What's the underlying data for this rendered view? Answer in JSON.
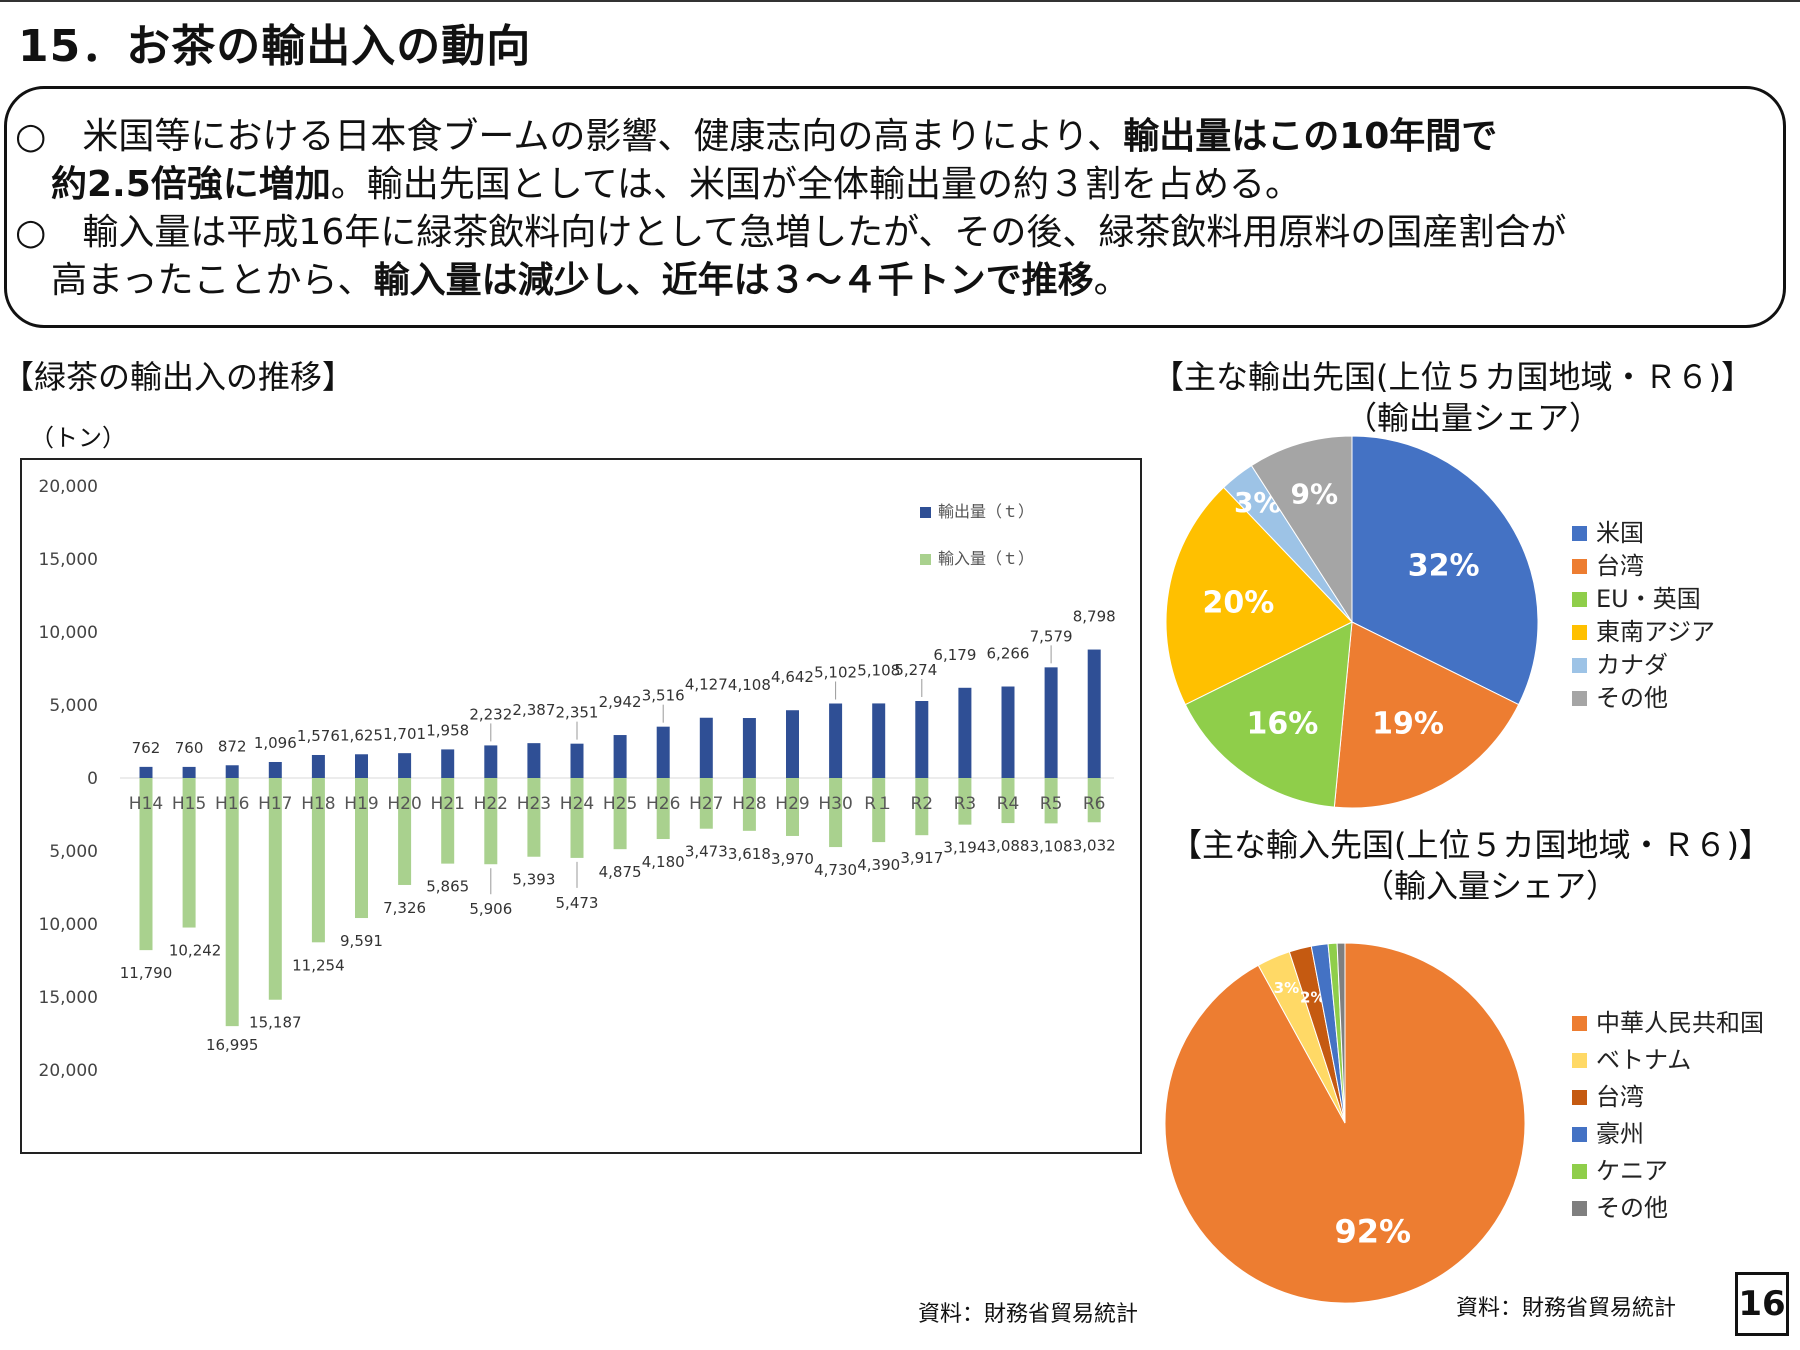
{
  "title": "15．お茶の輸出入の動向",
  "summary": {
    "bullet_mark": "○",
    "line1_plain": "　米国等における日本食ブームの影響、健康志向の高まりにより、",
    "line1_bold": "輸出量はこの10年間で",
    "line2_bold": "約2.5倍強に増加",
    "line2_plain": "。輸出先国としては、米国が全体輸出量の約３割を占める。",
    "line3_plain": "　輸入量は平成16年に緑茶飲料向けとして急増したが、その後、緑茶飲料用原料の国産割合が",
    "line4_plain": "高まったことから、",
    "line4_bold": "輸入量は減少し、近年は３～４千トンで推移",
    "line4_end": "。"
  },
  "left_section": {
    "label": "【緑茶の輸出入の推移】",
    "unit": "（トン）",
    "source": "資料：財務省貿易統計"
  },
  "export_section": {
    "label1": "【主な輸出先国(上位５カ国地域・Ｒ６)】",
    "label2": "（輸出量シェア）"
  },
  "import_section": {
    "label1": "【主な輸入先国(上位５カ国地域・Ｒ６)】",
    "label2": "（輸入量シェア）",
    "source": "資料：財務省貿易統計"
  },
  "page_number": "16",
  "colors": {
    "export_bar": "#2f4f95",
    "import_bar": "#a9d18e"
  },
  "chart_data": [
    {
      "type": "bar",
      "categories": [
        "H14",
        "H15",
        "H16",
        "H17",
        "H18",
        "H19",
        "H20",
        "H21",
        "H22",
        "H23",
        "H24",
        "H25",
        "H26",
        "H27",
        "H28",
        "H29",
        "H30",
        "R１",
        "R2",
        "R3",
        "R4",
        "R5",
        "R6"
      ],
      "series": [
        {
          "name": "輸出量（ｔ）",
          "values": [
            762,
            760,
            872,
            1096,
            1576,
            1625,
            1701,
            1958,
            2232,
            2387,
            2351,
            2942,
            3516,
            4127,
            4108,
            4642,
            5102,
            5108,
            5274,
            6179,
            6266,
            7579,
            8798
          ],
          "labels": [
            "762",
            "760",
            "872",
            "1,096",
            "1,576",
            "1,625",
            "1,701",
            "1,958",
            "2,232",
            "2,387",
            "2,351",
            "2,942",
            "3,516",
            "4,127",
            "4,108",
            "4,642",
            "5,102",
            "5,108",
            "5,274",
            "6,179",
            "6,266",
            "7,579",
            "8,798"
          ]
        },
        {
          "name": "輸入量（ｔ）",
          "values": [
            -11790,
            -10242,
            -16995,
            -15187,
            -11254,
            -9591,
            -7326,
            -5865,
            -5906,
            -5393,
            -5473,
            -4875,
            -4180,
            -3473,
            -3618,
            -3970,
            -4730,
            -4390,
            -3917,
            -3194,
            -3088,
            -3108,
            -3032
          ],
          "labels": [
            "11,790",
            "10,242",
            "16,995",
            "15,187",
            "11,254",
            "9,591",
            "7,326",
            "5,865",
            "5,906",
            "5,393",
            "5,473",
            "4,875",
            "4,180",
            "3,473",
            "3,618",
            "3,970",
            "4,730",
            "4,390",
            "3,917",
            "3,194",
            "3,088",
            "3,108",
            "3,032"
          ]
        }
      ],
      "yticks": [
        "20,000",
        "15,000",
        "10,000",
        "5,000",
        "0",
        "5,000",
        "10,000",
        "15,000",
        "20,000"
      ],
      "ylim": [
        -20000,
        20000
      ],
      "grid": false,
      "legend": "top-right"
    },
    {
      "type": "pie",
      "title": "【主な輸出先国(上位５カ国地域・Ｒ６)】",
      "categories": [
        "米国",
        "台湾",
        "EU・英国",
        "東南アジア",
        "カナダ",
        "その他"
      ],
      "values": [
        32,
        19,
        16,
        20,
        3,
        9
      ],
      "labels": [
        "32%",
        "19%",
        "16%",
        "20%",
        "3%",
        "9%"
      ],
      "colors": [
        "#4472c4",
        "#ed7d31",
        "#8fce4a",
        "#ffc000",
        "#9dc3e6",
        "#a5a5a5"
      ],
      "legend": "right"
    },
    {
      "type": "pie",
      "title": "【主な輸入先国(上位５カ国地域・Ｒ６)】",
      "categories": [
        "中華人民共和国",
        "ベトナム",
        "台湾",
        "豪州",
        "ケニア",
        "その他"
      ],
      "values": [
        92,
        3,
        2,
        1.5,
        0.8,
        0.7
      ],
      "labels": [
        "92%",
        "3%",
        "2%",
        "",
        "",
        ""
      ],
      "colors": [
        "#ed7d31",
        "#ffd966",
        "#c55a11",
        "#4472c4",
        "#8fce4a",
        "#7f7f7f"
      ],
      "legend": "right"
    }
  ]
}
